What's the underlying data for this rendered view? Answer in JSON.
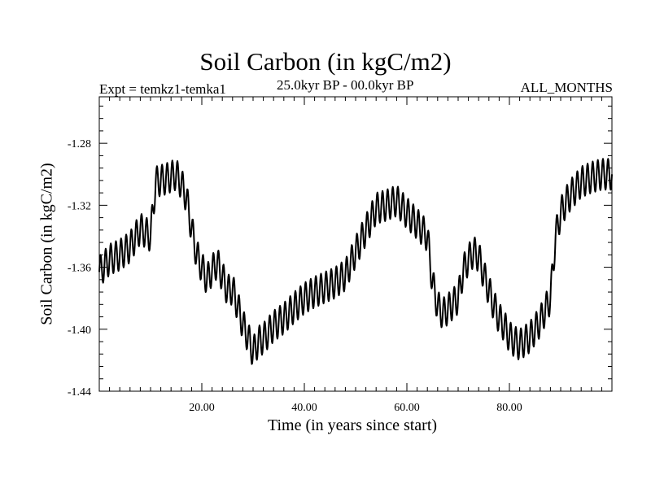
{
  "chart_data": {
    "type": "line",
    "title": "Soil Carbon (in kgC/m2)",
    "left_subtitle": "Expt = temkz1-temka1",
    "center_subtitle": "25.0kyr BP - 00.0kyr BP",
    "right_subtitle": "ALL_MONTHS",
    "xlabel": "Time (in years since start)",
    "ylabel": "Soil Carbon (in kgC/m2)",
    "xlim": [
      0,
      100
    ],
    "ylim": [
      -1.44,
      -1.25
    ],
    "xticks": [
      20,
      40,
      60,
      80
    ],
    "xtick_labels": [
      "20.00",
      "40.00",
      "60.00",
      "80.00"
    ],
    "yticks": [
      -1.28,
      -1.32,
      -1.36,
      -1.4,
      -1.44
    ],
    "ytick_labels": [
      "-1.28",
      "-1.32",
      "-1.36",
      "-1.40",
      "-1.44"
    ],
    "grid": false,
    "series": [
      {
        "name": "Soil Carbon",
        "color": "#000000",
        "x": [
          0,
          2,
          4,
          6,
          8,
          10,
          11,
          13,
          15,
          16,
          17,
          18,
          19,
          20,
          21,
          22,
          23,
          24,
          25,
          26,
          27,
          28,
          29,
          30,
          31,
          32,
          34,
          36,
          38,
          40,
          42,
          44,
          46,
          48,
          50,
          52,
          54,
          56,
          58,
          60,
          62,
          64,
          65,
          66,
          67,
          68,
          70,
          71,
          72,
          73,
          74,
          75,
          76,
          77,
          78,
          79,
          80,
          81,
          82,
          84,
          86,
          88,
          89,
          90,
          91,
          92,
          94,
          96,
          98,
          100
        ],
        "y": [
          -1.363,
          -1.355,
          -1.352,
          -1.347,
          -1.335,
          -1.34,
          -1.305,
          -1.303,
          -1.3,
          -1.306,
          -1.315,
          -1.335,
          -1.352,
          -1.36,
          -1.368,
          -1.362,
          -1.357,
          -1.366,
          -1.375,
          -1.374,
          -1.385,
          -1.397,
          -1.405,
          -1.415,
          -1.408,
          -1.406,
          -1.398,
          -1.393,
          -1.386,
          -1.38,
          -1.376,
          -1.373,
          -1.37,
          -1.365,
          -1.35,
          -1.336,
          -1.322,
          -1.32,
          -1.317,
          -1.325,
          -1.332,
          -1.34,
          -1.37,
          -1.385,
          -1.39,
          -1.387,
          -1.38,
          -1.362,
          -1.355,
          -1.35,
          -1.353,
          -1.365,
          -1.375,
          -1.385,
          -1.393,
          -1.398,
          -1.405,
          -1.408,
          -1.41,
          -1.405,
          -1.395,
          -1.38,
          -1.34,
          -1.325,
          -1.318,
          -1.313,
          -1.305,
          -1.302,
          -1.3,
          -1.3
        ],
        "seasonal_cycle_amplitude": 0.01
      }
    ]
  }
}
